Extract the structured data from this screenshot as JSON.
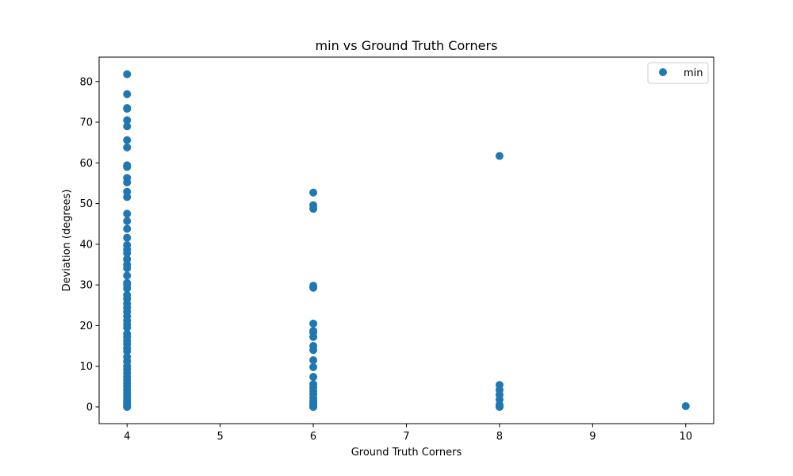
{
  "chart_data": {
    "type": "scatter",
    "title": "min vs Ground Truth Corners",
    "xlabel": "Ground Truth Corners",
    "ylabel": "Deviation (degrees)",
    "xlim": [
      3.7,
      10.3
    ],
    "ylim": [
      -4.1,
      86
    ],
    "xticks": [
      4,
      5,
      6,
      7,
      8,
      9,
      10
    ],
    "yticks": [
      0,
      10,
      20,
      30,
      40,
      50,
      60,
      70,
      80
    ],
    "grid": false,
    "legend_position": "top-right",
    "marker_color": "#1f77b4",
    "series": [
      {
        "name": "min",
        "points": [
          {
            "x": 4,
            "y": 81.8
          },
          {
            "x": 4,
            "y": 76.9
          },
          {
            "x": 4,
            "y": 73.5
          },
          {
            "x": 4,
            "y": 73.3
          },
          {
            "x": 4,
            "y": 70.5
          },
          {
            "x": 4,
            "y": 69.0
          },
          {
            "x": 4,
            "y": 65.6
          },
          {
            "x": 4,
            "y": 63.8
          },
          {
            "x": 4,
            "y": 59.4
          },
          {
            "x": 4,
            "y": 59.0
          },
          {
            "x": 4,
            "y": 56.3
          },
          {
            "x": 4,
            "y": 55.2
          },
          {
            "x": 4,
            "y": 52.9
          },
          {
            "x": 4,
            "y": 51.6
          },
          {
            "x": 4,
            "y": 47.5
          },
          {
            "x": 4,
            "y": 45.7
          },
          {
            "x": 4,
            "y": 43.8
          },
          {
            "x": 4,
            "y": 41.6
          },
          {
            "x": 4,
            "y": 39.8
          },
          {
            "x": 4,
            "y": 38.7
          },
          {
            "x": 4,
            "y": 37.8
          },
          {
            "x": 4,
            "y": 36.3
          },
          {
            "x": 4,
            "y": 35.0
          },
          {
            "x": 4,
            "y": 34.1
          },
          {
            "x": 4,
            "y": 32.3
          },
          {
            "x": 4,
            "y": 30.5
          },
          {
            "x": 4,
            "y": 30.0
          },
          {
            "x": 4,
            "y": 29.1
          },
          {
            "x": 4,
            "y": 27.5
          },
          {
            "x": 4,
            "y": 26.6
          },
          {
            "x": 4,
            "y": 25.4
          },
          {
            "x": 4,
            "y": 24.4
          },
          {
            "x": 4,
            "y": 23.4
          },
          {
            "x": 4,
            "y": 22.3
          },
          {
            "x": 4,
            "y": 21.2
          },
          {
            "x": 4,
            "y": 20.3
          },
          {
            "x": 4,
            "y": 19.5
          },
          {
            "x": 4,
            "y": 18.0
          },
          {
            "x": 4,
            "y": 17.2
          },
          {
            "x": 4,
            "y": 16.3
          },
          {
            "x": 4,
            "y": 15.5
          },
          {
            "x": 4,
            "y": 14.5
          },
          {
            "x": 4,
            "y": 13.7
          },
          {
            "x": 4,
            "y": 12.3
          },
          {
            "x": 4,
            "y": 11.2
          },
          {
            "x": 4,
            "y": 10.1
          },
          {
            "x": 4,
            "y": 9.2
          },
          {
            "x": 4,
            "y": 8.3
          },
          {
            "x": 4,
            "y": 7.4
          },
          {
            "x": 4,
            "y": 6.6
          },
          {
            "x": 4,
            "y": 5.8
          },
          {
            "x": 4,
            "y": 5.0
          },
          {
            "x": 4,
            "y": 4.2
          },
          {
            "x": 4,
            "y": 3.5
          },
          {
            "x": 4,
            "y": 2.8
          },
          {
            "x": 4,
            "y": 2.2
          },
          {
            "x": 4,
            "y": 1.6
          },
          {
            "x": 4,
            "y": 1.1
          },
          {
            "x": 4,
            "y": 0.6
          },
          {
            "x": 4,
            "y": 0.3
          },
          {
            "x": 4,
            "y": 0.1
          },
          {
            "x": 4,
            "y": 0.0
          },
          {
            "x": 6,
            "y": 52.7
          },
          {
            "x": 6,
            "y": 49.6
          },
          {
            "x": 6,
            "y": 48.7
          },
          {
            "x": 6,
            "y": 29.8
          },
          {
            "x": 6,
            "y": 29.3
          },
          {
            "x": 6,
            "y": 20.5
          },
          {
            "x": 6,
            "y": 18.7
          },
          {
            "x": 6,
            "y": 18.3
          },
          {
            "x": 6,
            "y": 17.2
          },
          {
            "x": 6,
            "y": 15.0
          },
          {
            "x": 6,
            "y": 14.0
          },
          {
            "x": 6,
            "y": 11.5
          },
          {
            "x": 6,
            "y": 9.8
          },
          {
            "x": 6,
            "y": 7.4
          },
          {
            "x": 6,
            "y": 5.6
          },
          {
            "x": 6,
            "y": 4.8
          },
          {
            "x": 6,
            "y": 3.9
          },
          {
            "x": 6,
            "y": 3.1
          },
          {
            "x": 6,
            "y": 2.2
          },
          {
            "x": 6,
            "y": 1.5
          },
          {
            "x": 6,
            "y": 0.9
          },
          {
            "x": 6,
            "y": 0.4
          },
          {
            "x": 6,
            "y": 0.1
          },
          {
            "x": 6,
            "y": 0.0
          },
          {
            "x": 8,
            "y": 61.7
          },
          {
            "x": 8,
            "y": 5.4
          },
          {
            "x": 8,
            "y": 4.2
          },
          {
            "x": 8,
            "y": 3.0
          },
          {
            "x": 8,
            "y": 1.8
          },
          {
            "x": 8,
            "y": 0.5
          },
          {
            "x": 8,
            "y": 0.1
          },
          {
            "x": 8,
            "y": 0.0
          },
          {
            "x": 10,
            "y": 0.2
          }
        ]
      }
    ]
  }
}
